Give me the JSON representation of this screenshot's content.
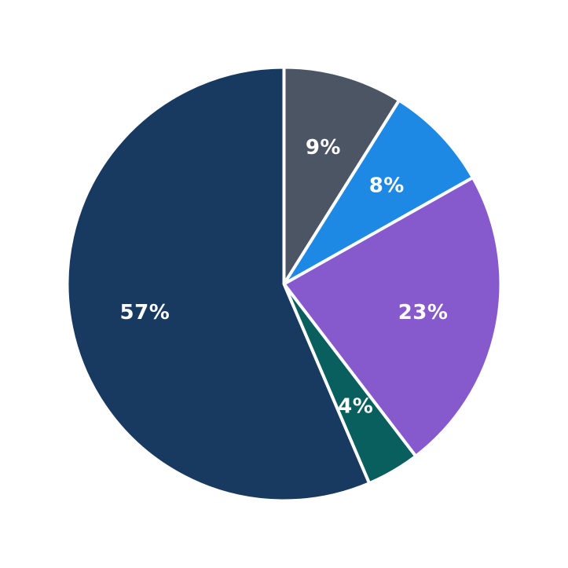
{
  "page": {
    "background": "#FFFFFF"
  },
  "chart_data": {
    "type": "pie",
    "start_angle_deg": 0,
    "direction": "clockwise",
    "legend": "none",
    "separator_color": "#FFFFFF",
    "separator_width": 4,
    "label_color": "#FFFFFF",
    "label_radius_ratio": 0.655,
    "slices": [
      {
        "label": "9%",
        "value": 9,
        "color": "#4B5563"
      },
      {
        "label": "8%",
        "value": 8,
        "color": "#1E88E5"
      },
      {
        "label": "23%",
        "value": 23,
        "color": "#8659CD"
      },
      {
        "label": "4%",
        "value": 4,
        "color": "#095E5E"
      },
      {
        "label": "57%",
        "value": 57,
        "color": "#193A60"
      }
    ]
  }
}
